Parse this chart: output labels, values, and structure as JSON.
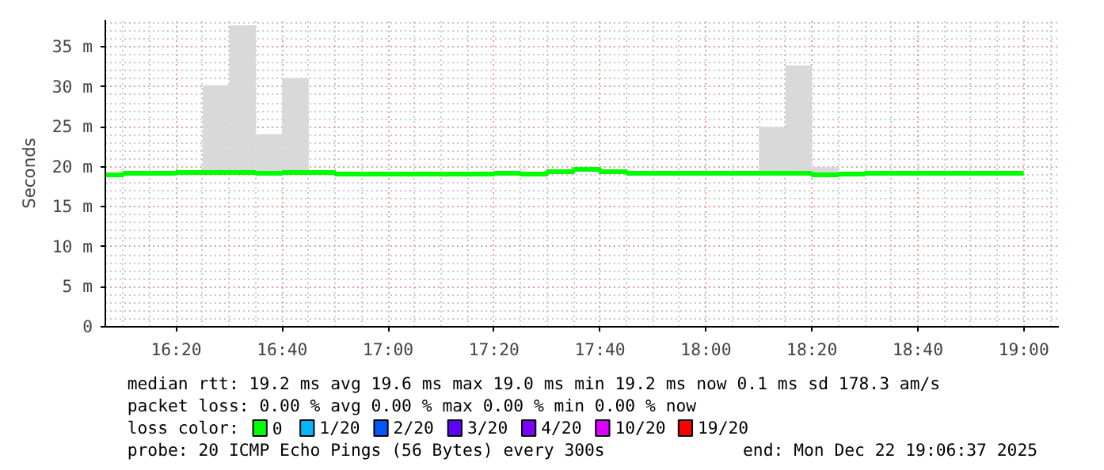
{
  "chart_data": {
    "type": "step",
    "ylabel": "Seconds",
    "xlim": [
      16.1103,
      19.1103
    ],
    "ylim": [
      0,
      38.4
    ],
    "xticks": [
      {
        "value": 16.3333,
        "label": "16:20"
      },
      {
        "value": 16.6667,
        "label": "16:40"
      },
      {
        "value": 17.0,
        "label": "17:00"
      },
      {
        "value": 17.3333,
        "label": "17:20"
      },
      {
        "value": 17.6667,
        "label": "17:40"
      },
      {
        "value": 18.0,
        "label": "18:00"
      },
      {
        "value": 18.3333,
        "label": "18:20"
      },
      {
        "value": 18.6667,
        "label": "18:40"
      },
      {
        "value": 19.0,
        "label": "19:00"
      }
    ],
    "yticks": [
      0,
      {
        "value": 5,
        "label": "5 m"
      },
      {
        "value": 10,
        "label": "10 m"
      },
      {
        "value": 15,
        "label": "15 m"
      },
      {
        "value": 20,
        "label": "20 m"
      },
      {
        "value": 25,
        "label": "25 m"
      },
      {
        "value": 30,
        "label": "30 m"
      },
      {
        "value": 35,
        "label": "35 m"
      }
    ],
    "grid": true,
    "legend": "bottom",
    "marker": "none",
    "line_style": "solid",
    "series": [
      {
        "type": "bar",
        "color": "#d9d9d9",
        "x": [
          16.4583,
          16.5417,
          16.625,
          16.7083,
          18.2083,
          18.2917,
          18.375
        ],
        "base": [
          19.0,
          19.0,
          19.0,
          19.0,
          19.0,
          19.0,
          19.0
        ],
        "values": [
          11.2,
          18.7,
          5.1,
          12.1,
          6.0,
          13.7,
          1.0
        ]
      },
      {
        "name": "0",
        "color": "#00ff00",
        "x": [
          16.1103,
          16.1667,
          16.25,
          16.3333,
          16.4167,
          16.5,
          16.5833,
          16.6667,
          16.75,
          16.8333,
          16.9167,
          17.0,
          17.0833,
          17.1667,
          17.25,
          17.3333,
          17.4167,
          17.5,
          17.5833,
          17.6667,
          17.75,
          17.8333,
          17.9167,
          18.0,
          18.0833,
          18.1667,
          18.25,
          18.3333,
          18.4167,
          18.5,
          18.5833,
          18.6667,
          18.75,
          18.8333,
          18.9167,
          19.0
        ],
        "values": [
          19.0,
          19.2,
          19.2,
          19.3,
          19.3,
          19.3,
          19.2,
          19.3,
          19.3,
          19.1,
          19.1,
          19.1,
          19.1,
          19.1,
          19.1,
          19.2,
          19.1,
          19.4,
          19.7,
          19.4,
          19.2,
          19.2,
          19.2,
          19.2,
          19.2,
          19.2,
          19.2,
          19.0,
          19.1,
          19.2,
          19.2,
          19.2,
          19.2,
          19.2,
          19.2,
          19.2
        ]
      },
      {
        "name": "1/20",
        "color": "#00b8ff"
      },
      {
        "name": "2/20",
        "color": "#0059ff"
      },
      {
        "name": "3/20",
        "color": "#5e00ff"
      },
      {
        "name": "4/20",
        "color": "#7e00ff"
      },
      {
        "name": "10/20",
        "color": "#dd00ff"
      },
      {
        "name": "19/20",
        "color": "#ff0000"
      }
    ],
    "annotations": [
      "median rtt:  19.2 ms avg  19.6 ms max  19.0 ms min  19.2 ms now  0.1 ms sd  178.3   am/s",
      "packet loss: 0.00 % avg  0.00 % max  0.00 % min  0.00 % now",
      "loss color:",
      "probe:       20 ICMP Echo Pings (56 Bytes) every 300s",
      "end: Mon Dec 22 19:06:37 2025"
    ]
  }
}
